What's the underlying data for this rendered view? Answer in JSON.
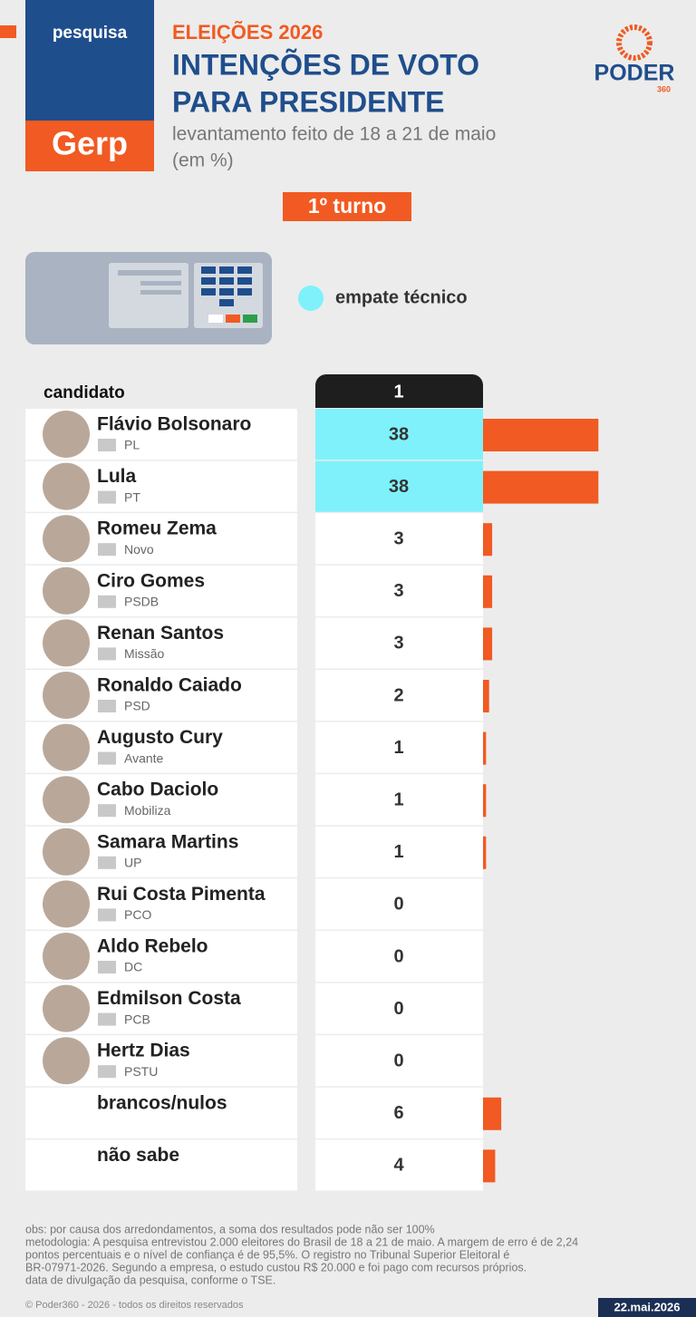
{
  "chart_data": {
    "type": "bar",
    "brand_top": "pesquisa",
    "brand_bottom": "Gerp",
    "kicker": "ELEIÇÕES 2026",
    "title_lines": [
      "INTENÇÕES DE VOTO",
      "PARA PRESIDENTE"
    ],
    "subtitle_lines": [
      "levantamento feito de 18 a 21 de maio",
      "(em %)"
    ],
    "round": "1º turno",
    "tie_label": "empate técnico",
    "category_header": "candidato",
    "column_header": "1",
    "categories": [
      "Flávio Bolsonaro",
      "Lula",
      "Romeu Zema",
      "Ciro Gomes",
      "Renan Santos",
      "Ronaldo Caiado",
      "Augusto Cury",
      "Cabo Daciolo",
      "Samara Martins",
      "Rui Costa Pimenta",
      "Aldo Rebelo",
      "Edmilson Costa",
      "Hertz Dias",
      "brancos/nulos",
      "não sabe"
    ],
    "parties": [
      "PL",
      "PT",
      "Novo",
      "PSDB",
      "Missão",
      "PSD",
      "Avante",
      "Mobiliza",
      "UP",
      "PCO",
      "DC",
      "PCB",
      "PSTU",
      null,
      null
    ],
    "values": [
      38,
      38,
      3,
      3,
      3,
      2,
      1,
      1,
      1,
      0,
      0,
      0,
      0,
      6,
      4
    ],
    "tie": [
      true,
      true,
      false,
      false,
      false,
      false,
      false,
      false,
      false,
      false,
      false,
      false,
      false,
      false,
      false
    ],
    "color": "#f15a22",
    "tie_color": "#7ff1fb",
    "notes": [
      "obs: por causa dos arredondamentos, a soma dos resultados pode não ser 100%",
      "metodologia: A pesquisa entrevistou 2.000 eleitores do Brasil de 18 a 21 de maio. A margem de erro é de 2,24",
      "pontos percentuais e o nível de confiança é de 95,5%. O registro no Tribunal Superior Eleitoral é",
      "BR-07971-2026. Segundo a empresa, o estudo custou R$ 20.000 e foi pago com recursos próprios.",
      "data de divulgação da pesquisa, conforme o TSE."
    ],
    "copyright": "© Poder360 - 2026 - todos os direitos reservados",
    "date": "22.mai.2026",
    "logo": "PODER",
    "logo_sub": "360"
  }
}
